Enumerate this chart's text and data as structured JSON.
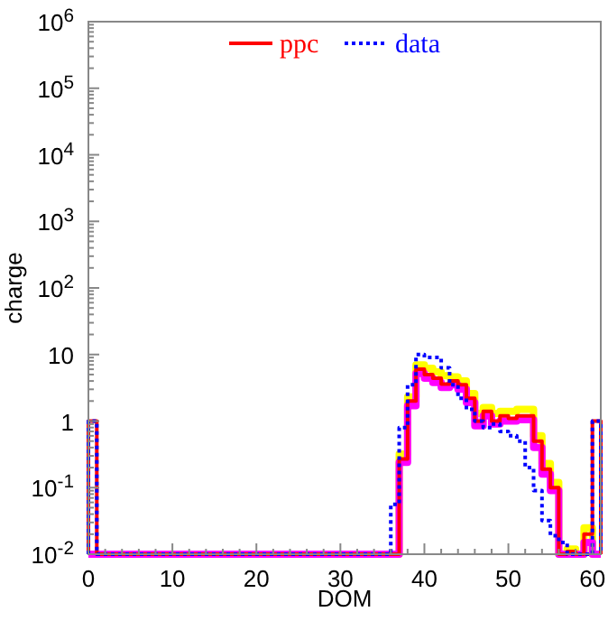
{
  "chart_data": {
    "type": "histogram",
    "xlabel": "DOM",
    "ylabel": "charge",
    "log": "y",
    "legend": "top",
    "grid": false,
    "bins": [
      0,
      1,
      2,
      3,
      4,
      5,
      6,
      7,
      8,
      9,
      10,
      11,
      12,
      13,
      14,
      15,
      16,
      17,
      18,
      19,
      20,
      21,
      22,
      23,
      24,
      25,
      26,
      27,
      28,
      29,
      30,
      31,
      32,
      33,
      34,
      35,
      36,
      37,
      38,
      39,
      40,
      41,
      42,
      43,
      44,
      45,
      46,
      47,
      48,
      49,
      50,
      51,
      52,
      53,
      54,
      55,
      56,
      57,
      58,
      59,
      60,
      61
    ],
    "xlim": [
      0,
      61
    ],
    "ylim": [
      0.01,
      1000000
    ],
    "xticks": [
      0,
      {
        "value": 2,
        "label": null
      },
      {
        "value": 4,
        "label": null
      },
      {
        "value": 6,
        "label": null
      },
      {
        "value": 8,
        "label": null
      },
      10,
      {
        "value": 12,
        "label": null
      },
      {
        "value": 14,
        "label": null
      },
      {
        "value": 16,
        "label": null
      },
      {
        "value": 18,
        "label": null
      },
      20,
      {
        "value": 22,
        "label": null
      },
      {
        "value": 24,
        "label": null
      },
      {
        "value": 26,
        "label": null
      },
      {
        "value": 28,
        "label": null
      },
      30,
      {
        "value": 32,
        "label": null
      },
      {
        "value": 34,
        "label": null
      },
      {
        "value": 36,
        "label": null
      },
      {
        "value": 38,
        "label": null
      },
      40,
      {
        "value": 42,
        "label": null
      },
      {
        "value": 44,
        "label": null
      },
      {
        "value": 46,
        "label": null
      },
      {
        "value": 48,
        "label": null
      },
      50,
      {
        "value": 52,
        "label": null
      },
      {
        "value": 54,
        "label": null
      },
      {
        "value": 56,
        "label": null
      },
      {
        "value": 58,
        "label": null
      },
      60
    ],
    "yticks": [
      {
        "value": 0.01,
        "label": "10$^{-2}$"
      },
      {
        "value": 0.1,
        "label": "10$^{-1}$"
      },
      1,
      10,
      {
        "value": 100,
        "label": "10$^{2}$"
      },
      {
        "value": 1000,
        "label": "10$^{3}$"
      },
      {
        "value": 10000,
        "label": "10$^{4}$"
      },
      {
        "value": 100000,
        "label": "10$^{5}$"
      },
      {
        "value": 1000000,
        "label": "10$^{6}$"
      }
    ],
    "series": [
      {
        "color": "#ffff00",
        "line_style": "solid",
        "values": [
          null,
          null,
          null,
          null,
          null,
          null,
          null,
          null,
          null,
          null,
          null,
          null,
          null,
          null,
          null,
          null,
          null,
          null,
          null,
          null,
          null,
          null,
          null,
          null,
          null,
          null,
          null,
          null,
          null,
          null,
          null,
          null,
          null,
          null,
          null,
          null,
          null,
          0.32,
          2.3,
          7.0,
          6.2,
          5.5,
          4.8,
          4.6,
          4.0,
          2.6,
          1.3,
          1.6,
          1.3,
          1.4,
          1.4,
          1.5,
          1.5,
          0.6,
          0.23,
          0.12,
          null,
          0.012,
          null,
          0.025,
          null
        ]
      },
      {
        "color": "#ff00ff",
        "line_style": "solid",
        "values": [
          null,
          null,
          null,
          null,
          null,
          null,
          null,
          null,
          null,
          null,
          null,
          null,
          null,
          null,
          null,
          null,
          null,
          null,
          null,
          null,
          null,
          null,
          null,
          null,
          null,
          null,
          null,
          null,
          null,
          null,
          null,
          null,
          null,
          null,
          null,
          null,
          null,
          0.24,
          1.7,
          5.2,
          4.4,
          3.8,
          3.2,
          3.5,
          3.0,
          1.9,
          0.85,
          1.2,
          0.9,
          1.0,
          1.0,
          1.05,
          1.05,
          0.4,
          0.16,
          0.09,
          null,
          null,
          null,
          0.015,
          null
        ]
      },
      {
        "name": "ppc",
        "color": "#ff0000",
        "line_style": "solid",
        "values": [
          1,
          null,
          null,
          null,
          null,
          null,
          null,
          null,
          null,
          null,
          null,
          null,
          null,
          null,
          null,
          null,
          null,
          null,
          null,
          null,
          null,
          null,
          null,
          null,
          null,
          null,
          null,
          null,
          null,
          null,
          null,
          null,
          null,
          null,
          null,
          null,
          null,
          0.27,
          2.0,
          6.0,
          5.0,
          4.4,
          3.6,
          4.0,
          3.5,
          2.2,
          1.0,
          1.4,
          1.0,
          1.2,
          1.1,
          1.2,
          1.2,
          0.5,
          0.19,
          0.1,
          null,
          0.011,
          null,
          0.02,
          1
        ]
      },
      {
        "name": "data",
        "color": "#0000ff",
        "line_style": "dotted",
        "values": [
          1,
          null,
          null,
          null,
          null,
          null,
          null,
          null,
          null,
          null,
          null,
          null,
          null,
          null,
          null,
          null,
          null,
          null,
          null,
          null,
          null,
          null,
          null,
          null,
          null,
          null,
          null,
          null,
          null,
          null,
          null,
          null,
          null,
          null,
          null,
          null,
          0.056,
          0.8,
          3.5,
          10,
          9,
          9,
          6.3,
          3.5,
          2.2,
          1.5,
          1.0,
          0.8,
          0.9,
          0.7,
          0.6,
          0.5,
          0.2,
          0.09,
          0.032,
          0.019,
          0.015,
          null,
          null,
          null,
          1
        ]
      }
    ]
  }
}
